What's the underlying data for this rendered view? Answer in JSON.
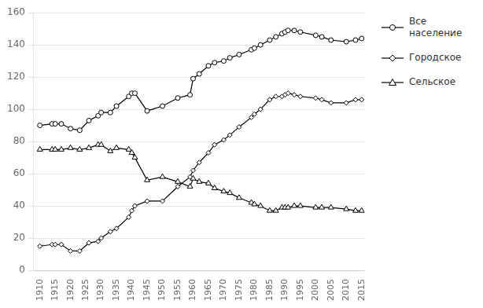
{
  "chart_data": {
    "type": "line",
    "x": [
      1910,
      1914,
      1915,
      1917,
      1920,
      1923,
      1926,
      1929,
      1930,
      1933,
      1935,
      1939,
      1940,
      1941,
      1945,
      1950,
      1955,
      1959,
      1960,
      1962,
      1965,
      1967,
      1970,
      1972,
      1975,
      1979,
      1980,
      1982,
      1985,
      1987,
      1989,
      1990,
      1991,
      1993,
      1995,
      2000,
      2002,
      2005,
      2010,
      2013,
      2015
    ],
    "series": [
      {
        "name": "Все\nнаселение",
        "color": "#000000",
        "marker": "circle",
        "values": [
          90,
          91,
          91,
          91,
          88,
          87,
          93,
          96,
          98,
          98,
          102,
          108,
          110,
          110,
          99,
          102,
          107,
          109,
          119,
          122,
          127,
          129,
          130,
          132,
          134,
          137,
          138,
          140,
          143,
          145,
          147,
          148,
          149,
          149,
          148,
          146,
          145,
          143,
          142,
          143,
          144
        ]
      },
      {
        "name": "Городское",
        "color": "#000000",
        "marker": "diamond",
        "values": [
          15,
          16,
          16,
          16,
          12,
          12,
          17,
          18,
          20,
          24,
          26,
          33,
          37,
          40,
          43,
          43,
          52,
          58,
          62,
          67,
          73,
          78,
          81,
          84,
          89,
          95,
          97,
          100,
          106,
          108,
          108,
          109,
          110,
          109,
          108,
          107,
          106,
          104,
          104,
          106,
          106
        ]
      },
      {
        "name": "Сельское",
        "color": "#000000",
        "marker": "triangle",
        "values": [
          75,
          75,
          75,
          75,
          76,
          75,
          76,
          78,
          78,
          74,
          76,
          75,
          73,
          70,
          56,
          58,
          55,
          52,
          57,
          55,
          54,
          51,
          49,
          48,
          45,
          42,
          41,
          40,
          37,
          37,
          39,
          39,
          39,
          40,
          40,
          39,
          39,
          39,
          38,
          37,
          37
        ]
      }
    ],
    "xlim": [
      1908,
      2016
    ],
    "xticks": [
      1910,
      1915,
      1920,
      1925,
      1930,
      1935,
      1940,
      1945,
      1950,
      1955,
      1960,
      1965,
      1970,
      1975,
      1980,
      1985,
      1990,
      1995,
      2000,
      2005,
      2010,
      2015
    ],
    "ylim": [
      0,
      160
    ],
    "yticks": [
      0,
      20,
      40,
      60,
      80,
      100,
      120,
      140,
      160
    ],
    "grid": "y",
    "legend": "right"
  }
}
